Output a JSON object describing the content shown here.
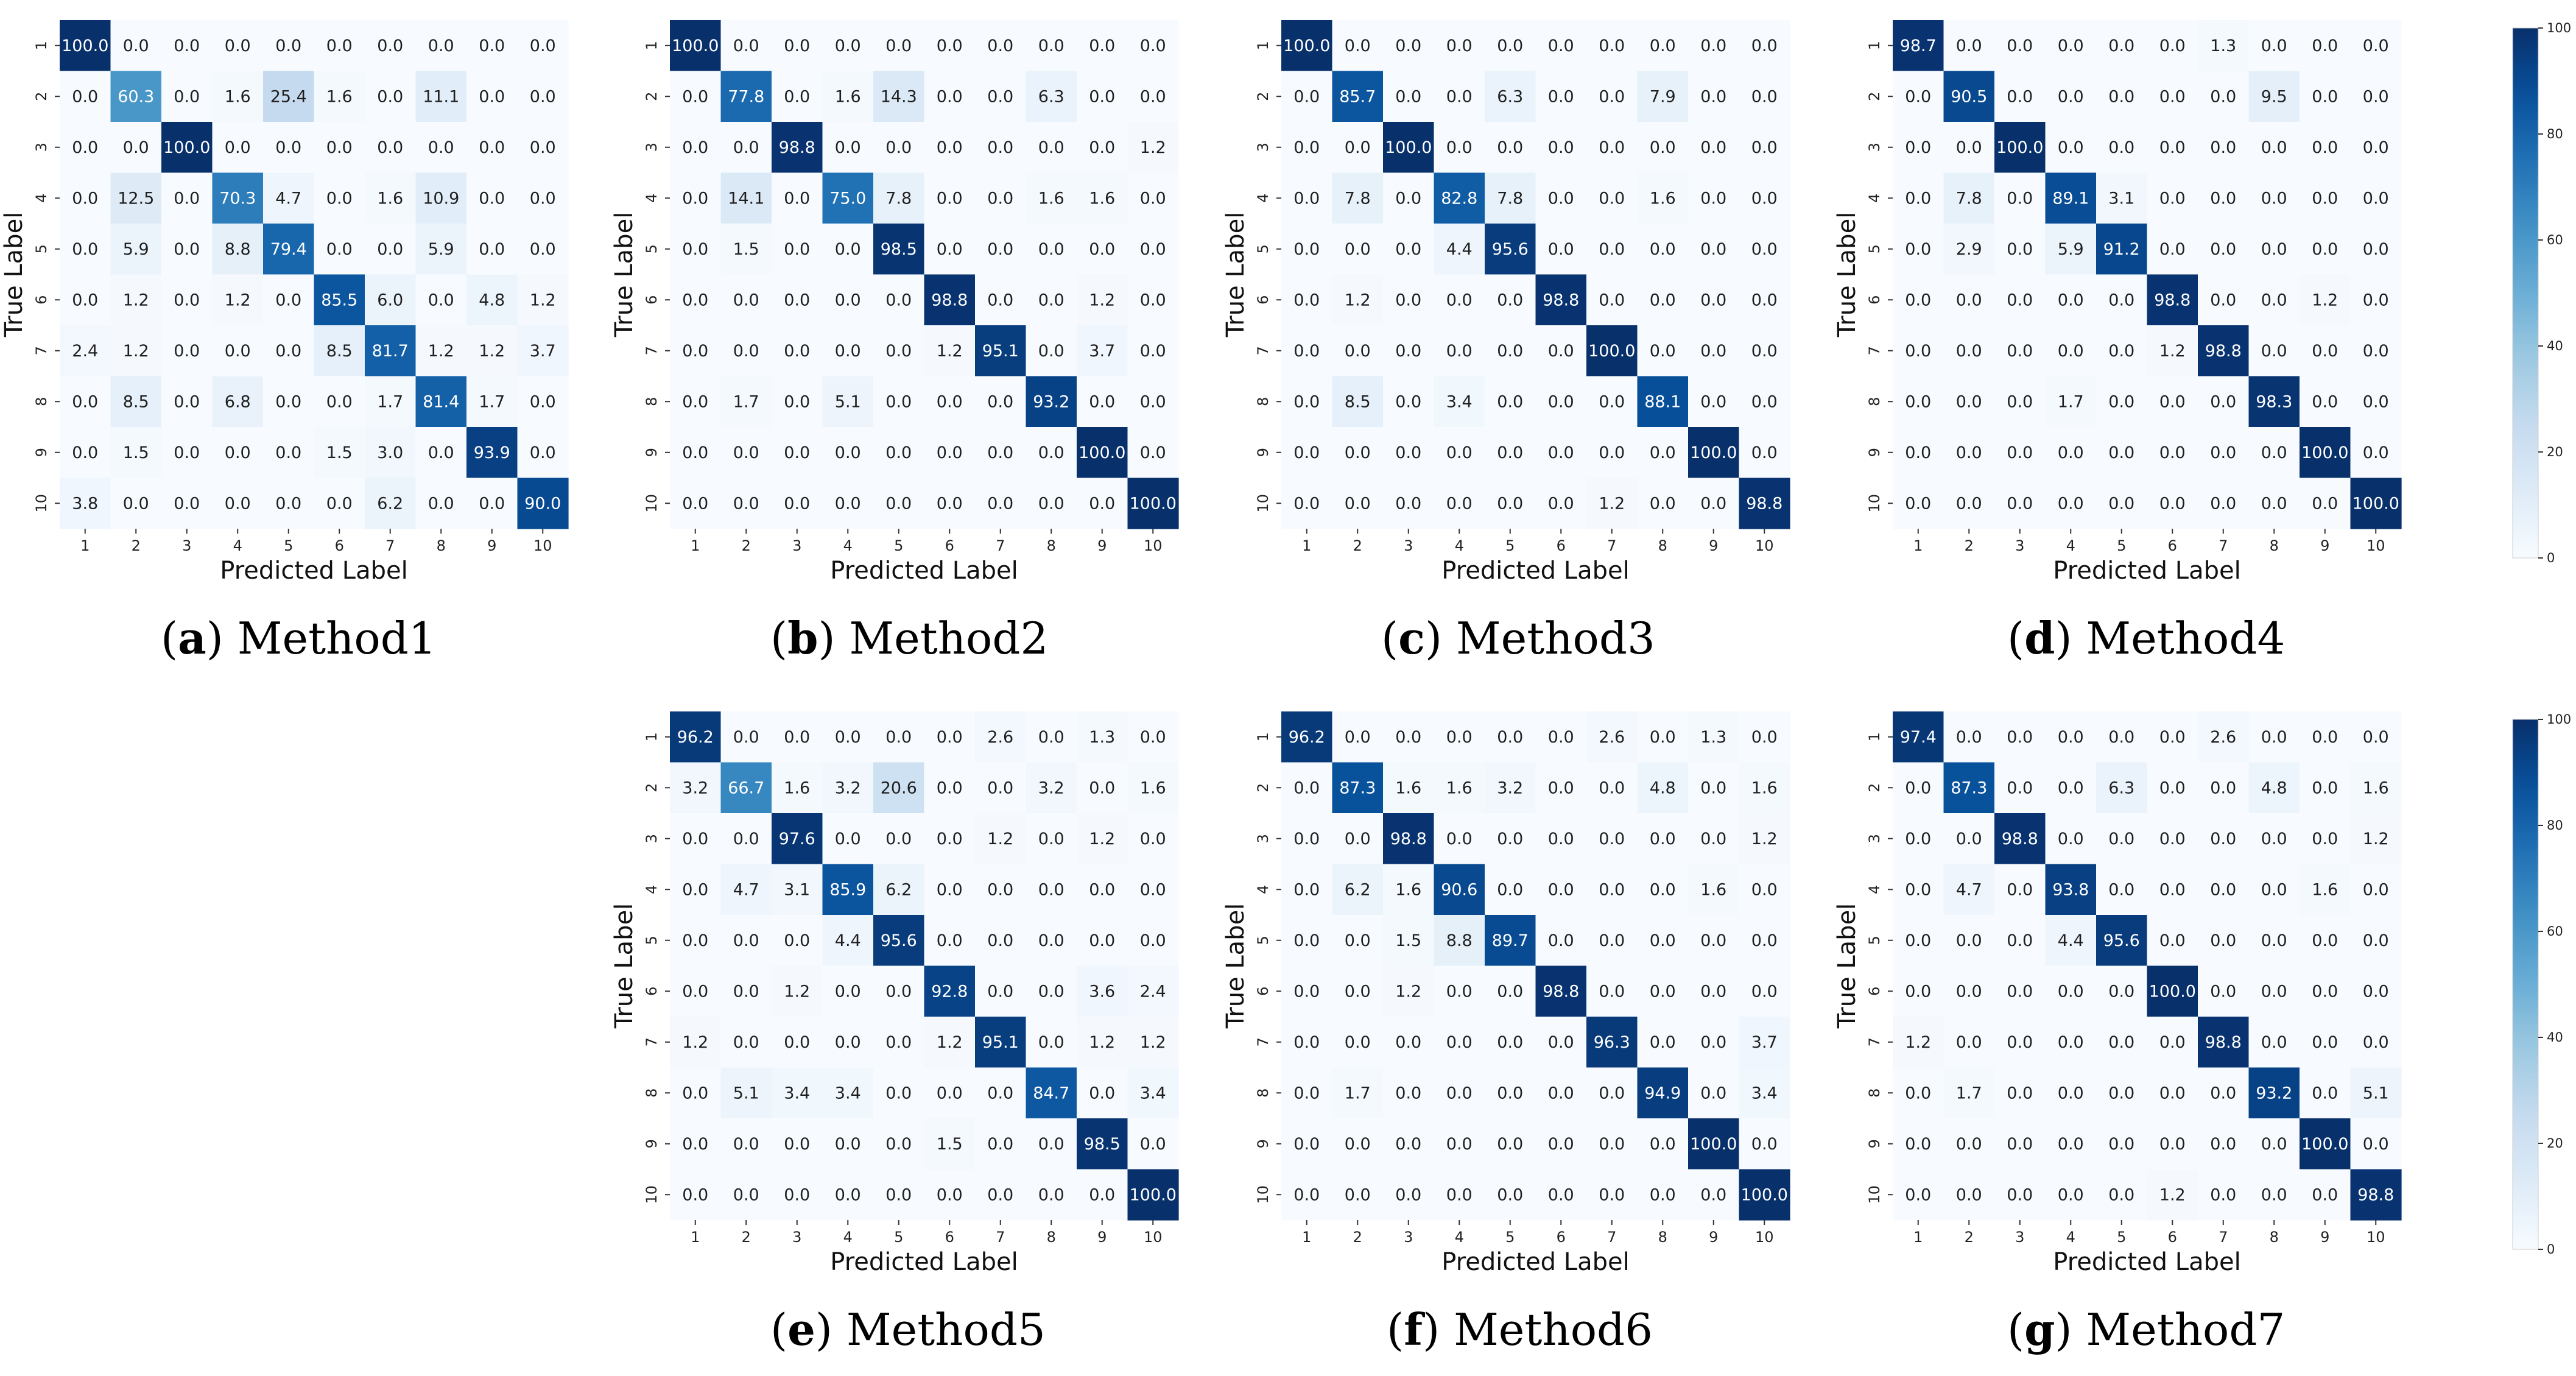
{
  "figure": {
    "panels": [
      {
        "id": "a",
        "letter": "a",
        "name": "Method1"
      },
      {
        "id": "b",
        "letter": "b",
        "name": "Method2"
      },
      {
        "id": "c",
        "letter": "c",
        "name": "Method3"
      },
      {
        "id": "d",
        "letter": "d",
        "name": "Method4"
      },
      {
        "id": "e",
        "letter": "e",
        "name": "Method5"
      },
      {
        "id": "f",
        "letter": "f",
        "name": "Method6"
      },
      {
        "id": "g",
        "letter": "g",
        "name": "Method7"
      }
    ],
    "colorbar": {
      "min": 0,
      "max": 100,
      "ticks": [
        "100",
        "80",
        "60",
        "40",
        "20",
        "0"
      ]
    },
    "colors": {
      "low": "#f7fbff",
      "high": "#08306b",
      "text_dark": "#1f1f1f",
      "text_light": "#ffffff"
    }
  },
  "chart_data": [
    {
      "type": "heatmap",
      "panel": "a",
      "xlabel": "Predicted Label",
      "ylabel": "True Label",
      "x_ticks": [
        "1",
        "2",
        "3",
        "4",
        "5",
        "6",
        "7",
        "8",
        "9",
        "10"
      ],
      "y_ticks": [
        "1",
        "2",
        "3",
        "4",
        "5",
        "6",
        "7",
        "8",
        "9",
        "10"
      ],
      "vmin": 0,
      "vmax": 100,
      "colormap": "Blues",
      "values": [
        [
          "100.0",
          "0.0",
          "0.0",
          "0.0",
          "0.0",
          "0.0",
          "0.0",
          "0.0",
          "0.0",
          "0.0"
        ],
        [
          "0.0",
          "60.3",
          "0.0",
          "1.6",
          "25.4",
          "1.6",
          "0.0",
          "11.1",
          "0.0",
          "0.0"
        ],
        [
          "0.0",
          "0.0",
          "100.0",
          "0.0",
          "0.0",
          "0.0",
          "0.0",
          "0.0",
          "0.0",
          "0.0"
        ],
        [
          "0.0",
          "12.5",
          "0.0",
          "70.3",
          "4.7",
          "0.0",
          "1.6",
          "10.9",
          "0.0",
          "0.0"
        ],
        [
          "0.0",
          "5.9",
          "0.0",
          "8.8",
          "79.4",
          "0.0",
          "0.0",
          "5.9",
          "0.0",
          "0.0"
        ],
        [
          "0.0",
          "1.2",
          "0.0",
          "1.2",
          "0.0",
          "85.5",
          "6.0",
          "0.0",
          "4.8",
          "1.2"
        ],
        [
          "2.4",
          "1.2",
          "0.0",
          "0.0",
          "0.0",
          "8.5",
          "81.7",
          "1.2",
          "1.2",
          "3.7"
        ],
        [
          "0.0",
          "8.5",
          "0.0",
          "6.8",
          "0.0",
          "0.0",
          "1.7",
          "81.4",
          "1.7",
          "0.0"
        ],
        [
          "0.0",
          "1.5",
          "0.0",
          "0.0",
          "0.0",
          "1.5",
          "3.0",
          "0.0",
          "93.9",
          "0.0"
        ],
        [
          "3.8",
          "0.0",
          "0.0",
          "0.0",
          "0.0",
          "0.0",
          "6.2",
          "0.0",
          "0.0",
          "90.0"
        ]
      ]
    },
    {
      "type": "heatmap",
      "panel": "b",
      "xlabel": "Predicted Label",
      "ylabel": "True Label",
      "x_ticks": [
        "1",
        "2",
        "3",
        "4",
        "5",
        "6",
        "7",
        "8",
        "9",
        "10"
      ],
      "y_ticks": [
        "1",
        "2",
        "3",
        "4",
        "5",
        "6",
        "7",
        "8",
        "9",
        "10"
      ],
      "vmin": 0,
      "vmax": 100,
      "colormap": "Blues",
      "values": [
        [
          "100.0",
          "0.0",
          "0.0",
          "0.0",
          "0.0",
          "0.0",
          "0.0",
          "0.0",
          "0.0",
          "0.0"
        ],
        [
          "0.0",
          "77.8",
          "0.0",
          "1.6",
          "14.3",
          "0.0",
          "0.0",
          "6.3",
          "0.0",
          "0.0"
        ],
        [
          "0.0",
          "0.0",
          "98.8",
          "0.0",
          "0.0",
          "0.0",
          "0.0",
          "0.0",
          "0.0",
          "1.2"
        ],
        [
          "0.0",
          "14.1",
          "0.0",
          "75.0",
          "7.8",
          "0.0",
          "0.0",
          "1.6",
          "1.6",
          "0.0"
        ],
        [
          "0.0",
          "1.5",
          "0.0",
          "0.0",
          "98.5",
          "0.0",
          "0.0",
          "0.0",
          "0.0",
          "0.0"
        ],
        [
          "0.0",
          "0.0",
          "0.0",
          "0.0",
          "0.0",
          "98.8",
          "0.0",
          "0.0",
          "1.2",
          "0.0"
        ],
        [
          "0.0",
          "0.0",
          "0.0",
          "0.0",
          "0.0",
          "1.2",
          "95.1",
          "0.0",
          "3.7",
          "0.0"
        ],
        [
          "0.0",
          "1.7",
          "0.0",
          "5.1",
          "0.0",
          "0.0",
          "0.0",
          "93.2",
          "0.0",
          "0.0"
        ],
        [
          "0.0",
          "0.0",
          "0.0",
          "0.0",
          "0.0",
          "0.0",
          "0.0",
          "0.0",
          "100.0",
          "0.0"
        ],
        [
          "0.0",
          "0.0",
          "0.0",
          "0.0",
          "0.0",
          "0.0",
          "0.0",
          "0.0",
          "0.0",
          "100.0"
        ]
      ]
    },
    {
      "type": "heatmap",
      "panel": "c",
      "xlabel": "Predicted Label",
      "ylabel": "True Label",
      "x_ticks": [
        "1",
        "2",
        "3",
        "4",
        "5",
        "6",
        "7",
        "8",
        "9",
        "10"
      ],
      "y_ticks": [
        "1",
        "2",
        "3",
        "4",
        "5",
        "6",
        "7",
        "8",
        "9",
        "10"
      ],
      "vmin": 0,
      "vmax": 100,
      "colormap": "Blues",
      "values": [
        [
          "100.0",
          "0.0",
          "0.0",
          "0.0",
          "0.0",
          "0.0",
          "0.0",
          "0.0",
          "0.0",
          "0.0"
        ],
        [
          "0.0",
          "85.7",
          "0.0",
          "0.0",
          "6.3",
          "0.0",
          "0.0",
          "7.9",
          "0.0",
          "0.0"
        ],
        [
          "0.0",
          "0.0",
          "100.0",
          "0.0",
          "0.0",
          "0.0",
          "0.0",
          "0.0",
          "0.0",
          "0.0"
        ],
        [
          "0.0",
          "7.8",
          "0.0",
          "82.8",
          "7.8",
          "0.0",
          "0.0",
          "1.6",
          "0.0",
          "0.0"
        ],
        [
          "0.0",
          "0.0",
          "0.0",
          "4.4",
          "95.6",
          "0.0",
          "0.0",
          "0.0",
          "0.0",
          "0.0"
        ],
        [
          "0.0",
          "1.2",
          "0.0",
          "0.0",
          "0.0",
          "98.8",
          "0.0",
          "0.0",
          "0.0",
          "0.0"
        ],
        [
          "0.0",
          "0.0",
          "0.0",
          "0.0",
          "0.0",
          "0.0",
          "100.0",
          "0.0",
          "0.0",
          "0.0"
        ],
        [
          "0.0",
          "8.5",
          "0.0",
          "3.4",
          "0.0",
          "0.0",
          "0.0",
          "88.1",
          "0.0",
          "0.0"
        ],
        [
          "0.0",
          "0.0",
          "0.0",
          "0.0",
          "0.0",
          "0.0",
          "0.0",
          "0.0",
          "100.0",
          "0.0"
        ],
        [
          "0.0",
          "0.0",
          "0.0",
          "0.0",
          "0.0",
          "0.0",
          "1.2",
          "0.0",
          "0.0",
          "98.8"
        ]
      ]
    },
    {
      "type": "heatmap",
      "panel": "d",
      "xlabel": "Predicted Label",
      "ylabel": "True Label",
      "x_ticks": [
        "1",
        "2",
        "3",
        "4",
        "5",
        "6",
        "7",
        "8",
        "9",
        "10"
      ],
      "y_ticks": [
        "1",
        "2",
        "3",
        "4",
        "5",
        "6",
        "7",
        "8",
        "9",
        "10"
      ],
      "vmin": 0,
      "vmax": 100,
      "colormap": "Blues",
      "values": [
        [
          "98.7",
          "0.0",
          "0.0",
          "0.0",
          "0.0",
          "0.0",
          "1.3",
          "0.0",
          "0.0",
          "0.0"
        ],
        [
          "0.0",
          "90.5",
          "0.0",
          "0.0",
          "0.0",
          "0.0",
          "0.0",
          "9.5",
          "0.0",
          "0.0"
        ],
        [
          "0.0",
          "0.0",
          "100.0",
          "0.0",
          "0.0",
          "0.0",
          "0.0",
          "0.0",
          "0.0",
          "0.0"
        ],
        [
          "0.0",
          "7.8",
          "0.0",
          "89.1",
          "3.1",
          "0.0",
          "0.0",
          "0.0",
          "0.0",
          "0.0"
        ],
        [
          "0.0",
          "2.9",
          "0.0",
          "5.9",
          "91.2",
          "0.0",
          "0.0",
          "0.0",
          "0.0",
          "0.0"
        ],
        [
          "0.0",
          "0.0",
          "0.0",
          "0.0",
          "0.0",
          "98.8",
          "0.0",
          "0.0",
          "1.2",
          "0.0"
        ],
        [
          "0.0",
          "0.0",
          "0.0",
          "0.0",
          "0.0",
          "1.2",
          "98.8",
          "0.0",
          "0.0",
          "0.0"
        ],
        [
          "0.0",
          "0.0",
          "0.0",
          "1.7",
          "0.0",
          "0.0",
          "0.0",
          "98.3",
          "0.0",
          "0.0"
        ],
        [
          "0.0",
          "0.0",
          "0.0",
          "0.0",
          "0.0",
          "0.0",
          "0.0",
          "0.0",
          "100.0",
          "0.0"
        ],
        [
          "0.0",
          "0.0",
          "0.0",
          "0.0",
          "0.0",
          "0.0",
          "0.0",
          "0.0",
          "0.0",
          "100.0"
        ]
      ]
    },
    {
      "type": "heatmap",
      "panel": "e",
      "xlabel": "Predicted Label",
      "ylabel": "True Label",
      "x_ticks": [
        "1",
        "2",
        "3",
        "4",
        "5",
        "6",
        "7",
        "8",
        "9",
        "10"
      ],
      "y_ticks": [
        "1",
        "2",
        "3",
        "4",
        "5",
        "6",
        "7",
        "8",
        "9",
        "10"
      ],
      "vmin": 0,
      "vmax": 100,
      "colormap": "Blues",
      "values": [
        [
          "96.2",
          "0.0",
          "0.0",
          "0.0",
          "0.0",
          "0.0",
          "2.6",
          "0.0",
          "1.3",
          "0.0"
        ],
        [
          "3.2",
          "66.7",
          "1.6",
          "3.2",
          "20.6",
          "0.0",
          "0.0",
          "3.2",
          "0.0",
          "1.6"
        ],
        [
          "0.0",
          "0.0",
          "97.6",
          "0.0",
          "0.0",
          "0.0",
          "1.2",
          "0.0",
          "1.2",
          "0.0"
        ],
        [
          "0.0",
          "4.7",
          "3.1",
          "85.9",
          "6.2",
          "0.0",
          "0.0",
          "0.0",
          "0.0",
          "0.0"
        ],
        [
          "0.0",
          "0.0",
          "0.0",
          "4.4",
          "95.6",
          "0.0",
          "0.0",
          "0.0",
          "0.0",
          "0.0"
        ],
        [
          "0.0",
          "0.0",
          "1.2",
          "0.0",
          "0.0",
          "92.8",
          "0.0",
          "0.0",
          "3.6",
          "2.4"
        ],
        [
          "1.2",
          "0.0",
          "0.0",
          "0.0",
          "0.0",
          "1.2",
          "95.1",
          "0.0",
          "1.2",
          "1.2"
        ],
        [
          "0.0",
          "5.1",
          "3.4",
          "3.4",
          "0.0",
          "0.0",
          "0.0",
          "84.7",
          "0.0",
          "3.4"
        ],
        [
          "0.0",
          "0.0",
          "0.0",
          "0.0",
          "0.0",
          "1.5",
          "0.0",
          "0.0",
          "98.5",
          "0.0"
        ],
        [
          "0.0",
          "0.0",
          "0.0",
          "0.0",
          "0.0",
          "0.0",
          "0.0",
          "0.0",
          "0.0",
          "100.0"
        ]
      ]
    },
    {
      "type": "heatmap",
      "panel": "f",
      "xlabel": "Predicted Label",
      "ylabel": "True Label",
      "x_ticks": [
        "1",
        "2",
        "3",
        "4",
        "5",
        "6",
        "7",
        "8",
        "9",
        "10"
      ],
      "y_ticks": [
        "1",
        "2",
        "3",
        "4",
        "5",
        "6",
        "7",
        "8",
        "9",
        "10"
      ],
      "vmin": 0,
      "vmax": 100,
      "colormap": "Blues",
      "values": [
        [
          "96.2",
          "0.0",
          "0.0",
          "0.0",
          "0.0",
          "0.0",
          "2.6",
          "0.0",
          "1.3",
          "0.0"
        ],
        [
          "0.0",
          "87.3",
          "1.6",
          "1.6",
          "3.2",
          "0.0",
          "0.0",
          "4.8",
          "0.0",
          "1.6"
        ],
        [
          "0.0",
          "0.0",
          "98.8",
          "0.0",
          "0.0",
          "0.0",
          "0.0",
          "0.0",
          "0.0",
          "1.2"
        ],
        [
          "0.0",
          "6.2",
          "1.6",
          "90.6",
          "0.0",
          "0.0",
          "0.0",
          "0.0",
          "1.6",
          "0.0"
        ],
        [
          "0.0",
          "0.0",
          "1.5",
          "8.8",
          "89.7",
          "0.0",
          "0.0",
          "0.0",
          "0.0",
          "0.0"
        ],
        [
          "0.0",
          "0.0",
          "1.2",
          "0.0",
          "0.0",
          "98.8",
          "0.0",
          "0.0",
          "0.0",
          "0.0"
        ],
        [
          "0.0",
          "0.0",
          "0.0",
          "0.0",
          "0.0",
          "0.0",
          "96.3",
          "0.0",
          "0.0",
          "3.7"
        ],
        [
          "0.0",
          "1.7",
          "0.0",
          "0.0",
          "0.0",
          "0.0",
          "0.0",
          "94.9",
          "0.0",
          "3.4"
        ],
        [
          "0.0",
          "0.0",
          "0.0",
          "0.0",
          "0.0",
          "0.0",
          "0.0",
          "0.0",
          "100.0",
          "0.0"
        ],
        [
          "0.0",
          "0.0",
          "0.0",
          "0.0",
          "0.0",
          "0.0",
          "0.0",
          "0.0",
          "0.0",
          "100.0"
        ]
      ]
    },
    {
      "type": "heatmap",
      "panel": "g",
      "xlabel": "Predicted Label",
      "ylabel": "True Label",
      "x_ticks": [
        "1",
        "2",
        "3",
        "4",
        "5",
        "6",
        "7",
        "8",
        "9",
        "10"
      ],
      "y_ticks": [
        "1",
        "2",
        "3",
        "4",
        "5",
        "6",
        "7",
        "8",
        "9",
        "10"
      ],
      "vmin": 0,
      "vmax": 100,
      "colormap": "Blues",
      "values": [
        [
          "97.4",
          "0.0",
          "0.0",
          "0.0",
          "0.0",
          "0.0",
          "2.6",
          "0.0",
          "0.0",
          "0.0"
        ],
        [
          "0.0",
          "87.3",
          "0.0",
          "0.0",
          "6.3",
          "0.0",
          "0.0",
          "4.8",
          "0.0",
          "1.6"
        ],
        [
          "0.0",
          "0.0",
          "98.8",
          "0.0",
          "0.0",
          "0.0",
          "0.0",
          "0.0",
          "0.0",
          "1.2"
        ],
        [
          "0.0",
          "4.7",
          "0.0",
          "93.8",
          "0.0",
          "0.0",
          "0.0",
          "0.0",
          "1.6",
          "0.0"
        ],
        [
          "0.0",
          "0.0",
          "0.0",
          "4.4",
          "95.6",
          "0.0",
          "0.0",
          "0.0",
          "0.0",
          "0.0"
        ],
        [
          "0.0",
          "0.0",
          "0.0",
          "0.0",
          "0.0",
          "100.0",
          "0.0",
          "0.0",
          "0.0",
          "0.0"
        ],
        [
          "1.2",
          "0.0",
          "0.0",
          "0.0",
          "0.0",
          "0.0",
          "98.8",
          "0.0",
          "0.0",
          "0.0"
        ],
        [
          "0.0",
          "1.7",
          "0.0",
          "0.0",
          "0.0",
          "0.0",
          "0.0",
          "93.2",
          "0.0",
          "5.1"
        ],
        [
          "0.0",
          "0.0",
          "0.0",
          "0.0",
          "0.0",
          "0.0",
          "0.0",
          "0.0",
          "100.0",
          "0.0"
        ],
        [
          "0.0",
          "0.0",
          "0.0",
          "0.0",
          "0.0",
          "1.2",
          "0.0",
          "0.0",
          "0.0",
          "98.8"
        ]
      ]
    }
  ]
}
